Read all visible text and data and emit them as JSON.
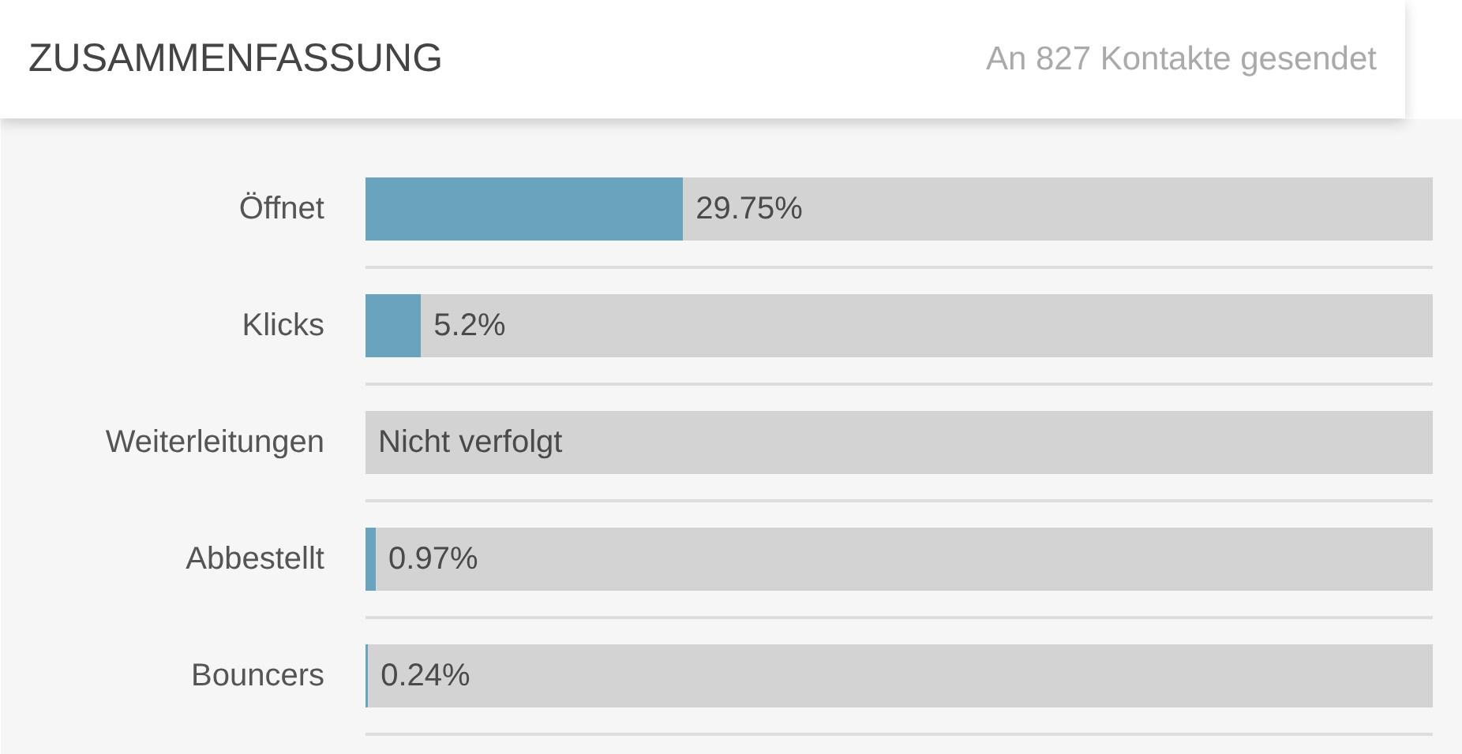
{
  "chart_data": {
    "type": "bar",
    "orientation": "horizontal",
    "stacked": true,
    "title": "ZUSAMMENFASSUNG",
    "subtitle": "An 827 Kontakte gesendet",
    "categories": [
      "Öffnet",
      "Klicks",
      "Weiterleitungen",
      "Abbestellt",
      "Bouncers"
    ],
    "xlim": [
      0,
      100
    ],
    "tick_labels": "y",
    "grid": "y",
    "series": [
      {
        "color": "#6aa3be",
        "values": [
          29.75,
          5.2,
          null,
          0.97,
          0.24
        ],
        "value_labels": [
          "29.75%",
          "5.2%",
          "Nicht verfolgt",
          "0.97%",
          "0.24%"
        ]
      },
      {
        "color": "#d3d3d3",
        "values": [
          70.25,
          94.8,
          100,
          99.03,
          99.76
        ]
      }
    ]
  }
}
